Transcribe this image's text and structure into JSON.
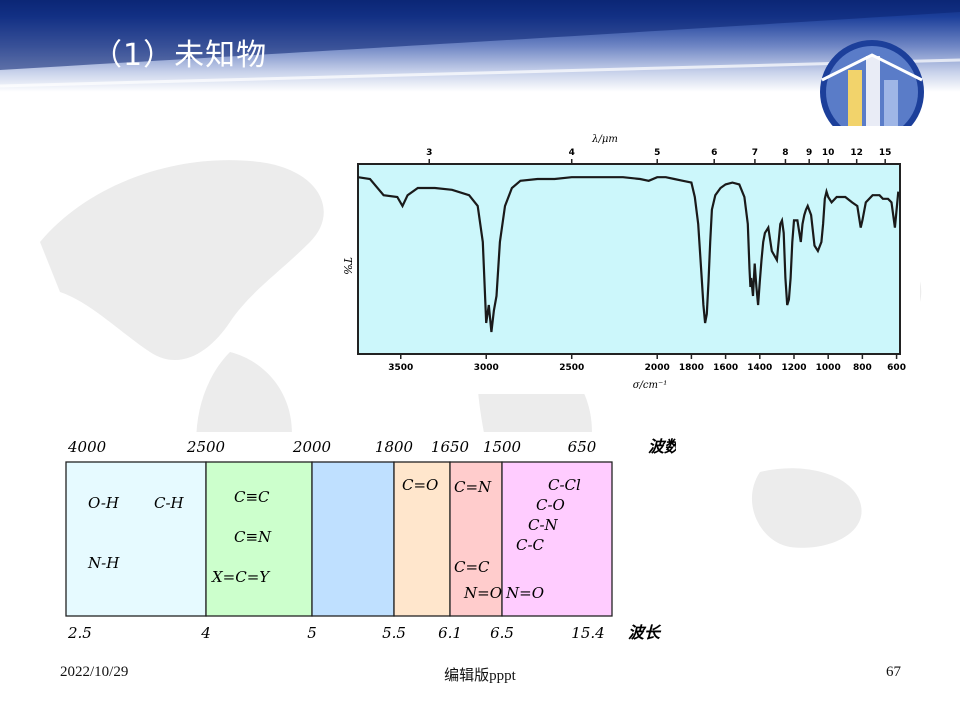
{
  "slide": {
    "title": "（1）未知物",
    "footer_date": "2022/10/29",
    "footer_center": "编辑版pppt",
    "page_number": "67"
  },
  "chart_data": [
    {
      "type": "line",
      "ylabel": "T%",
      "xlabel": "σ/cm⁻¹",
      "x2label": "λ/μm",
      "x_ticks": [
        "3500",
        "3000",
        "2500",
        "2000",
        "1800",
        "1600",
        "1400",
        "1200",
        "1000",
        "800",
        "600"
      ],
      "x2_ticks": [
        "3",
        "4",
        "5",
        "6",
        "7",
        "8",
        "9",
        "10",
        "12",
        "15"
      ],
      "xlim": [
        3750,
        580
      ],
      "series": [
        {
          "x": [
            3750,
            3680,
            3600,
            3520,
            3490,
            3460,
            3400,
            3300,
            3200,
            3100,
            3050,
            3020,
            3000,
            2985,
            2970,
            2955,
            2940,
            2920,
            2890,
            2850,
            2800,
            2700,
            2600,
            2500,
            2400,
            2300,
            2200,
            2100,
            2050,
            2000,
            1950,
            1900,
            1850,
            1800,
            1780,
            1760,
            1740,
            1730,
            1720,
            1710,
            1700,
            1690,
            1680,
            1660,
            1630,
            1600,
            1560,
            1520,
            1490,
            1470,
            1460,
            1455,
            1450,
            1440,
            1430,
            1420,
            1410,
            1400,
            1390,
            1380,
            1370,
            1350,
            1330,
            1300,
            1280,
            1270,
            1260,
            1250,
            1240,
            1230,
            1220,
            1210,
            1200,
            1180,
            1160,
            1150,
            1140,
            1130,
            1120,
            1100,
            1080,
            1060,
            1040,
            1030,
            1020,
            1010,
            1000,
            980,
            950,
            900,
            860,
            830,
            820,
            810,
            800,
            780,
            740,
            700,
            680,
            650,
            630,
            620,
            610,
            600,
            590
          ],
          "y": [
            96,
            95,
            86,
            85,
            80,
            86,
            90,
            90,
            89,
            86,
            80,
            60,
            15,
            25,
            10,
            22,
            30,
            60,
            80,
            90,
            94,
            95,
            95,
            96,
            96,
            96,
            96,
            95,
            94,
            96,
            96,
            95,
            94,
            93,
            85,
            70,
            40,
            25,
            15,
            20,
            38,
            60,
            78,
            86,
            90,
            92,
            93,
            92,
            85,
            70,
            45,
            35,
            40,
            30,
            48,
            35,
            25,
            38,
            50,
            60,
            65,
            68,
            55,
            50,
            70,
            72,
            65,
            40,
            25,
            28,
            40,
            60,
            72,
            72,
            60,
            70,
            75,
            78,
            80,
            75,
            58,
            55,
            60,
            70,
            84,
            88,
            85,
            82,
            85,
            85,
            82,
            80,
            74,
            68,
            72,
            82,
            86,
            86,
            84,
            84,
            82,
            75,
            68,
            78,
            88
          ]
        }
      ]
    },
    {
      "type": "table",
      "title": "",
      "wavenumber_label": "波数",
      "wavelength_label": "波长",
      "wavenumber_ticks": [
        "4000",
        "2500",
        "2000",
        "1800",
        "1650",
        "1500",
        "650"
      ],
      "wavelength_ticks": [
        "2.5",
        "4",
        "5",
        "5.5",
        "6.1",
        "6.5",
        "15.4"
      ],
      "regions": [
        {
          "range": "4000-2500",
          "color": "#e6faff",
          "labels": [
            "O-H",
            "C-H",
            "N-H"
          ]
        },
        {
          "range": "2500-2000",
          "color": "#ccffcc",
          "labels": [
            "C≡C",
            "C≡N",
            "X=C=Y"
          ]
        },
        {
          "range": "2000-1800",
          "color": "#bfe0ff",
          "labels": []
        },
        {
          "range": "1800-1650",
          "color": "#ffe6cc",
          "labels": [
            "C=O"
          ]
        },
        {
          "range": "1650-1500",
          "color": "#ffcccc",
          "labels": [
            "C=N",
            "C=C",
            "N=O"
          ]
        },
        {
          "range": "1500-650",
          "color": "#ffccff",
          "labels": [
            "N=O",
            "C-Cl",
            "C-O",
            "C-N",
            "C-C"
          ]
        }
      ]
    }
  ]
}
